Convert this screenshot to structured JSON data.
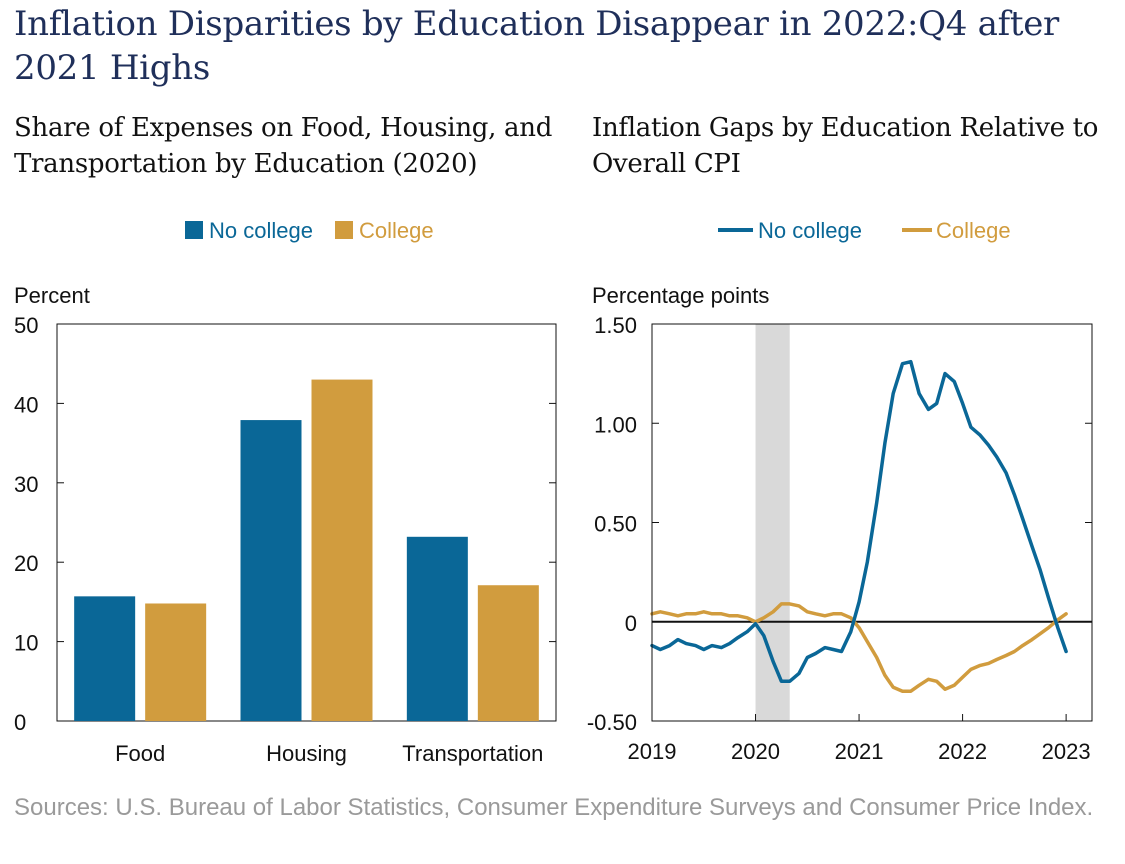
{
  "title": "Inflation Disparities by Education Disappear in 2022:Q4 after 2021 Highs",
  "source": "Sources: U.S. Bureau of Labor Statistics, Consumer Expenditure Surveys and Consumer Price Index.",
  "colors": {
    "no_college": "#0a6797",
    "college": "#d19c3e",
    "recession": "#d9d9d9",
    "title": "#1f2f5a"
  },
  "chart_data": [
    {
      "type": "bar",
      "title": "Share of Expenses on Food, Housing, and Transportation by Education (2020)",
      "ylabel": "Percent",
      "categories": [
        "Food",
        "Housing",
        "Transportation"
      ],
      "series": [
        {
          "name": "No college",
          "values": [
            15.7,
            37.9,
            23.2
          ]
        },
        {
          "name": "College",
          "values": [
            14.8,
            43.0,
            17.1
          ]
        }
      ],
      "ylim": [
        0,
        50
      ],
      "yticks": [
        0,
        10,
        20,
        30,
        40,
        50
      ],
      "ytick_labels": [
        "0",
        "10",
        "20",
        "30",
        "40",
        "50"
      ],
      "legend": "top-center",
      "grid": false
    },
    {
      "type": "line",
      "title": "Inflation Gaps by Education Relative to Overall CPI",
      "ylabel": "Percentage points",
      "ylim": [
        -0.5,
        1.5
      ],
      "yticks": [
        -0.5,
        0,
        0.5,
        1.0,
        1.5
      ],
      "ytick_labels": [
        "-0.50",
        "0",
        "0.50",
        "1.00",
        "1.50"
      ],
      "xlim": [
        2019,
        2023.25
      ],
      "xticks": [
        2019,
        2020,
        2021,
        2022,
        2023
      ],
      "xtick_labels": [
        "2019",
        "2020",
        "2021",
        "2022",
        "2023"
      ],
      "recession_shading": [
        2020.0,
        2020.33
      ],
      "legend": "top-center",
      "grid": false,
      "series": [
        {
          "name": "No college",
          "points": [
            [
              2019.0,
              -0.12
            ],
            [
              2019.08,
              -0.14
            ],
            [
              2019.17,
              -0.12
            ],
            [
              2019.25,
              -0.09
            ],
            [
              2019.33,
              -0.11
            ],
            [
              2019.42,
              -0.12
            ],
            [
              2019.5,
              -0.14
            ],
            [
              2019.58,
              -0.12
            ],
            [
              2019.67,
              -0.13
            ],
            [
              2019.75,
              -0.11
            ],
            [
              2019.83,
              -0.08
            ],
            [
              2019.92,
              -0.05
            ],
            [
              2020.0,
              -0.01
            ],
            [
              2020.08,
              -0.07
            ],
            [
              2020.17,
              -0.2
            ],
            [
              2020.25,
              -0.3
            ],
            [
              2020.33,
              -0.3
            ],
            [
              2020.42,
              -0.26
            ],
            [
              2020.5,
              -0.18
            ],
            [
              2020.58,
              -0.16
            ],
            [
              2020.67,
              -0.13
            ],
            [
              2020.75,
              -0.14
            ],
            [
              2020.83,
              -0.15
            ],
            [
              2020.92,
              -0.05
            ],
            [
              2021.0,
              0.1
            ],
            [
              2021.08,
              0.3
            ],
            [
              2021.17,
              0.6
            ],
            [
              2021.25,
              0.9
            ],
            [
              2021.33,
              1.15
            ],
            [
              2021.42,
              1.3
            ],
            [
              2021.5,
              1.31
            ],
            [
              2021.58,
              1.15
            ],
            [
              2021.67,
              1.07
            ],
            [
              2021.75,
              1.1
            ],
            [
              2021.83,
              1.25
            ],
            [
              2021.92,
              1.21
            ],
            [
              2022.0,
              1.1
            ],
            [
              2022.08,
              0.98
            ],
            [
              2022.17,
              0.94
            ],
            [
              2022.25,
              0.89
            ],
            [
              2022.33,
              0.83
            ],
            [
              2022.42,
              0.75
            ],
            [
              2022.5,
              0.64
            ],
            [
              2022.58,
              0.52
            ],
            [
              2022.67,
              0.38
            ],
            [
              2022.75,
              0.26
            ],
            [
              2022.83,
              0.12
            ],
            [
              2022.92,
              -0.03
            ],
            [
              2023.0,
              -0.15
            ]
          ]
        },
        {
          "name": "College",
          "points": [
            [
              2019.0,
              0.04
            ],
            [
              2019.08,
              0.05
            ],
            [
              2019.17,
              0.04
            ],
            [
              2019.25,
              0.03
            ],
            [
              2019.33,
              0.04
            ],
            [
              2019.42,
              0.04
            ],
            [
              2019.5,
              0.05
            ],
            [
              2019.58,
              0.04
            ],
            [
              2019.67,
              0.04
            ],
            [
              2019.75,
              0.03
            ],
            [
              2019.83,
              0.03
            ],
            [
              2019.92,
              0.02
            ],
            [
              2020.0,
              0.0
            ],
            [
              2020.08,
              0.02
            ],
            [
              2020.17,
              0.05
            ],
            [
              2020.25,
              0.09
            ],
            [
              2020.33,
              0.09
            ],
            [
              2020.42,
              0.08
            ],
            [
              2020.5,
              0.05
            ],
            [
              2020.58,
              0.04
            ],
            [
              2020.67,
              0.03
            ],
            [
              2020.75,
              0.04
            ],
            [
              2020.83,
              0.04
            ],
            [
              2020.92,
              0.02
            ],
            [
              2021.0,
              -0.03
            ],
            [
              2021.08,
              -0.1
            ],
            [
              2021.17,
              -0.18
            ],
            [
              2021.25,
              -0.27
            ],
            [
              2021.33,
              -0.33
            ],
            [
              2021.42,
              -0.35
            ],
            [
              2021.5,
              -0.35
            ],
            [
              2021.58,
              -0.32
            ],
            [
              2021.67,
              -0.29
            ],
            [
              2021.75,
              -0.3
            ],
            [
              2021.83,
              -0.34
            ],
            [
              2021.92,
              -0.32
            ],
            [
              2022.0,
              -0.28
            ],
            [
              2022.08,
              -0.24
            ],
            [
              2022.17,
              -0.22
            ],
            [
              2022.25,
              -0.21
            ],
            [
              2022.33,
              -0.19
            ],
            [
              2022.42,
              -0.17
            ],
            [
              2022.5,
              -0.15
            ],
            [
              2022.58,
              -0.12
            ],
            [
              2022.67,
              -0.09
            ],
            [
              2022.75,
              -0.06
            ],
            [
              2022.83,
              -0.03
            ],
            [
              2022.92,
              0.01
            ],
            [
              2023.0,
              0.04
            ]
          ]
        }
      ]
    }
  ]
}
